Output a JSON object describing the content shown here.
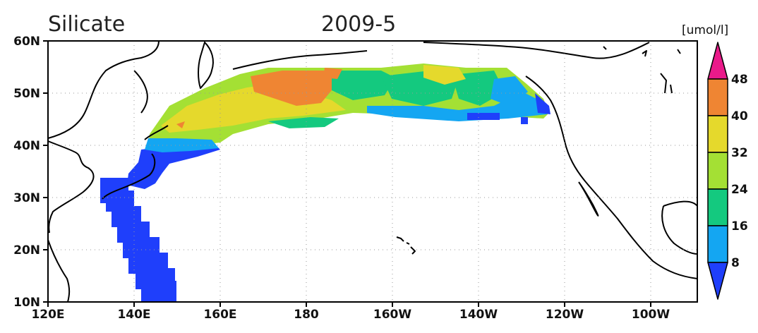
{
  "title": {
    "variable": "Silicate",
    "period": "2009-5"
  },
  "map": {
    "lon_range": [
      "120E",
      "90W"
    ],
    "lat_range": [
      "10N",
      "60N"
    ],
    "grid": "dotted",
    "lon_labels": [
      "120E",
      "140E",
      "160E",
      "180",
      "160W",
      "140W",
      "120W",
      "100W"
    ],
    "lat_labels": [
      "60N",
      "50N",
      "40N",
      "30N",
      "20N",
      "10N"
    ]
  },
  "colorbar": {
    "unit": "[umol/l]",
    "labels": [
      "48",
      "40",
      "32",
      "24",
      "16",
      "8"
    ],
    "colors": [
      "#ea1a8a",
      "#ef8533",
      "#e5d92c",
      "#a4e034",
      "#14c97f",
      "#14a6f2",
      "#1f3ffb"
    ]
  }
}
